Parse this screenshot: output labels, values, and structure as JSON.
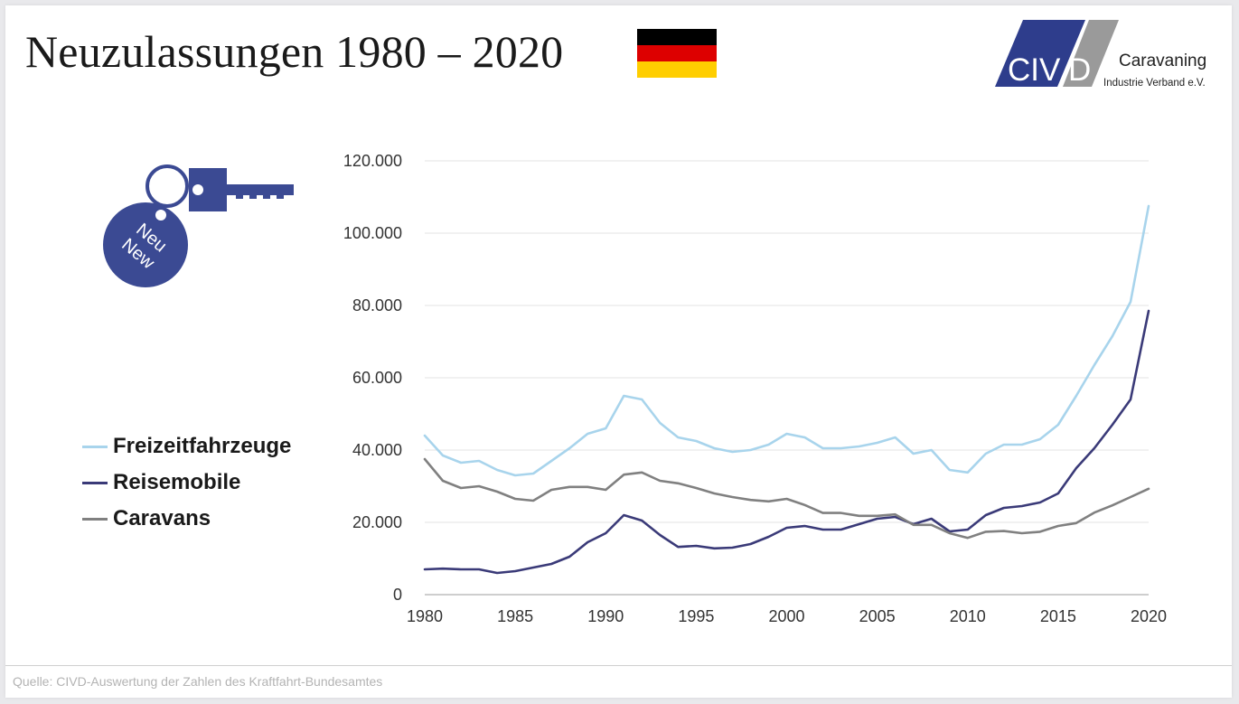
{
  "slide": {
    "title": "Neuzulassungen 1980 – 2020",
    "source": "Quelle:  CIVD-Auswertung  der Zahlen des Kraftfahrt-Bundesamtes"
  },
  "flag": {
    "colors": [
      "#000000",
      "#dd0000",
      "#ffce00"
    ]
  },
  "logo": {
    "letters": "CIV",
    "letter_d": "D",
    "name": "Caravaning",
    "subtitle": "Industrie Verband e.V.",
    "colors": {
      "dark": "#2e3d8c",
      "grey": "#9a9a9a"
    }
  },
  "key_icon": {
    "tag_line1": "Neu",
    "tag_line2": "New",
    "color": "#3b4a93"
  },
  "legend": [
    {
      "label": "Freizeitfahrzeuge",
      "color": "#a8d4ec"
    },
    {
      "label": "Reisemobile",
      "color": "#3a3a78"
    },
    {
      "label": "Caravans",
      "color": "#808080"
    }
  ],
  "chart_data": {
    "type": "line",
    "x": [
      1980,
      1981,
      1982,
      1983,
      1984,
      1985,
      1986,
      1987,
      1988,
      1989,
      1990,
      1991,
      1992,
      1993,
      1994,
      1995,
      1996,
      1997,
      1998,
      1999,
      2000,
      2001,
      2002,
      2003,
      2004,
      2005,
      2006,
      2007,
      2008,
      2009,
      2010,
      2011,
      2012,
      2013,
      2014,
      2015,
      2016,
      2017,
      2018,
      2019,
      2020
    ],
    "series": [
      {
        "name": "Freizeitfahrzeuge",
        "color": "#a8d4ec",
        "values": [
          44000,
          38500,
          36500,
          37000,
          34500,
          33000,
          33500,
          37000,
          40500,
          44500,
          46000,
          55000,
          54000,
          47500,
          43500,
          42500,
          40500,
          39500,
          40000,
          41500,
          44500,
          43500,
          40500,
          40500,
          41000,
          42000,
          43500,
          39000,
          40000,
          34500,
          33800,
          39000,
          41500,
          41500,
          43000,
          47000,
          55000,
          63500,
          71500,
          81000,
          107500
        ]
      },
      {
        "name": "Reisemobile",
        "color": "#3a3a78",
        "values": [
          7000,
          7200,
          7000,
          7000,
          6000,
          6500,
          7500,
          8500,
          10500,
          14500,
          17000,
          22000,
          20500,
          16500,
          13200,
          13500,
          12800,
          13000,
          14000,
          16000,
          18500,
          19000,
          18000,
          18000,
          19500,
          21000,
          21500,
          19500,
          21000,
          17500,
          18000,
          22000,
          24000,
          24500,
          25500,
          28000,
          35000,
          40500,
          47000,
          54000,
          78500
        ]
      },
      {
        "name": "Caravans",
        "color": "#808080",
        "values": [
          37500,
          31500,
          29500,
          30000,
          28500,
          26500,
          26000,
          29000,
          29800,
          29800,
          29000,
          33200,
          33800,
          31500,
          30800,
          29500,
          28000,
          27000,
          26200,
          25800,
          26500,
          24800,
          22600,
          22600,
          21800,
          21800,
          22200,
          19300,
          19300,
          17000,
          15700,
          17400,
          17600,
          17000,
          17400,
          19000,
          19800,
          22700,
          24700,
          27000,
          29300
        ]
      }
    ],
    "xticks": [
      1980,
      1985,
      1990,
      1995,
      2000,
      2005,
      2010,
      2015,
      2020
    ],
    "yticks": [
      0,
      20000,
      40000,
      60000,
      80000,
      100000,
      120000
    ],
    "ytick_labels": [
      "0",
      "20.000",
      "40.000",
      "60.000",
      "80.000",
      "100.000",
      "120.000"
    ],
    "xlim": [
      1980,
      2020
    ],
    "ylim": [
      0,
      120000
    ],
    "grid": true,
    "legend_position": "left"
  }
}
